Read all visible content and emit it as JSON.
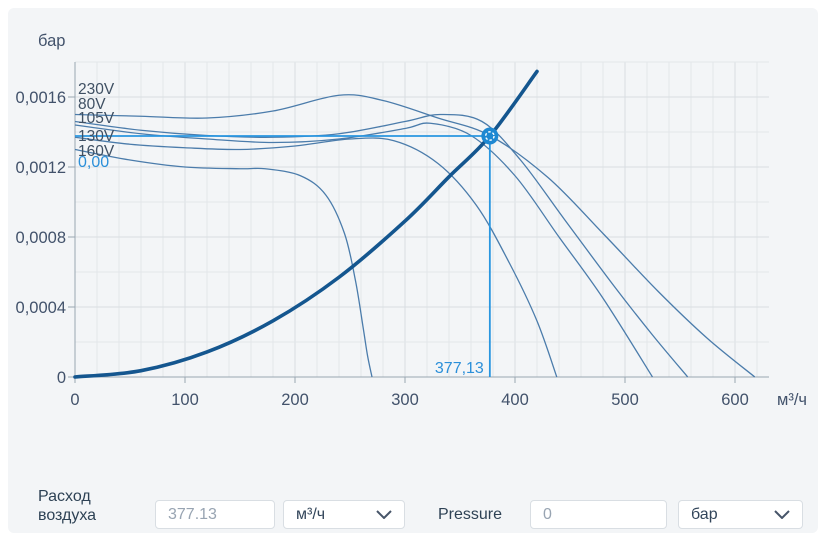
{
  "colors": {
    "accent_blue": "#1e88d2",
    "crosshair_blue": "#2996e0",
    "fan_curve": "#4b7cab",
    "system_curve": "#14568f",
    "label_dark": "#3f5063",
    "tick_text": "#42526b",
    "grid_minor": "#e3e7ea",
    "grid_major": "#d8dde2",
    "axis_line": "#9aa6b2",
    "panel_bg": "#f3f5f7",
    "value_blue": "#2b8fd9"
  },
  "chart_data": {
    "type": "line",
    "title": "",
    "xlabel": "м³/ч",
    "ylabel": "бар",
    "xlim": [
      0,
      630
    ],
    "ylim": [
      0,
      0.0018
    ],
    "grid": true,
    "x_ticks": [
      "0",
      "100",
      "200",
      "300",
      "400",
      "500",
      "600"
    ],
    "x_tick_values": [
      0,
      100,
      200,
      300,
      400,
      500,
      600
    ],
    "y_ticks": [
      "0",
      "0,0004",
      "0,0008",
      "0,0012",
      "0,0016"
    ],
    "y_tick_values": [
      0,
      0.0004,
      0.0008,
      0.0012,
      0.0016
    ],
    "curve_labels": [
      "230V",
      "80V",
      "105V",
      "130V",
      "160V"
    ],
    "series": [
      {
        "name": "230V",
        "points": [
          [
            0,
            0.0015
          ],
          [
            60,
            0.00149
          ],
          [
            120,
            0.00148
          ],
          [
            180,
            0.00152
          ],
          [
            240,
            0.00161
          ],
          [
            280,
            0.00158
          ],
          [
            330,
            0.00148
          ],
          [
            377,
            0.00138
          ],
          [
            430,
            0.00114
          ],
          [
            480,
            0.00082
          ],
          [
            530,
            0.00049
          ],
          [
            575,
            0.00022
          ],
          [
            618,
            0
          ]
        ]
      },
      {
        "name": "80V",
        "points": [
          [
            0,
            0.00146
          ],
          [
            60,
            0.00141
          ],
          [
            120,
            0.00138
          ],
          [
            180,
            0.00137
          ],
          [
            240,
            0.00139
          ],
          [
            300,
            0.00146
          ],
          [
            332,
            0.0015
          ],
          [
            370,
            0.00146
          ],
          [
            405,
            0.00124
          ],
          [
            445,
            0.0009
          ],
          [
            490,
            0.00052
          ],
          [
            525,
            0.00024
          ],
          [
            557,
            0
          ]
        ]
      },
      {
        "name": "105V",
        "points": [
          [
            0,
            0.00144
          ],
          [
            60,
            0.00139
          ],
          [
            120,
            0.00136
          ],
          [
            180,
            0.00134
          ],
          [
            240,
            0.00136
          ],
          [
            300,
            0.00142
          ],
          [
            323,
            0.00145
          ],
          [
            360,
            0.00138
          ],
          [
            400,
            0.00115
          ],
          [
            440,
            0.0008
          ],
          [
            480,
            0.00045
          ],
          [
            525,
            0
          ]
        ]
      },
      {
        "name": "130V",
        "points": [
          [
            0,
            0.00137
          ],
          [
            50,
            0.00133
          ],
          [
            100,
            0.00131
          ],
          [
            150,
            0.0013
          ],
          [
            200,
            0.00132
          ],
          [
            250,
            0.00136
          ],
          [
            290,
            0.00135
          ],
          [
            330,
            0.00122
          ],
          [
            365,
            0.00098
          ],
          [
            395,
            0.00065
          ],
          [
            420,
            0.00032
          ],
          [
            438,
            0
          ]
        ]
      },
      {
        "name": "160V",
        "points": [
          [
            0,
            0.0013
          ],
          [
            50,
            0.00124
          ],
          [
            100,
            0.0012
          ],
          [
            150,
            0.00119
          ],
          [
            173,
            0.00119
          ],
          [
            205,
            0.00115
          ],
          [
            228,
            0.00104
          ],
          [
            245,
            0.00082
          ],
          [
            255,
            0.00055
          ],
          [
            262,
            0.00028
          ],
          [
            266,
            0.00012
          ],
          [
            270,
            0
          ]
        ]
      }
    ],
    "system_curve": {
      "name": "system-resistance",
      "points": [
        [
          0,
          0
        ],
        [
          60,
          3.6e-05
        ],
        [
          120,
          0.000143
        ],
        [
          180,
          0.000321
        ],
        [
          240,
          0.00057
        ],
        [
          300,
          0.000891
        ],
        [
          340,
          0.001144
        ],
        [
          377.13,
          0.001377
        ],
        [
          420,
          0.001746
        ]
      ]
    },
    "operating_point": {
      "flow": 377.13,
      "pressure": 0.001377,
      "flow_label": "377,13",
      "pressure_label": "0,00"
    }
  },
  "controls": {
    "flow": {
      "label": "Расход воздуха",
      "value": "377.13",
      "unit": "м³/ч"
    },
    "pressure": {
      "label": "Pressure",
      "value": "0",
      "unit": "бар"
    }
  }
}
